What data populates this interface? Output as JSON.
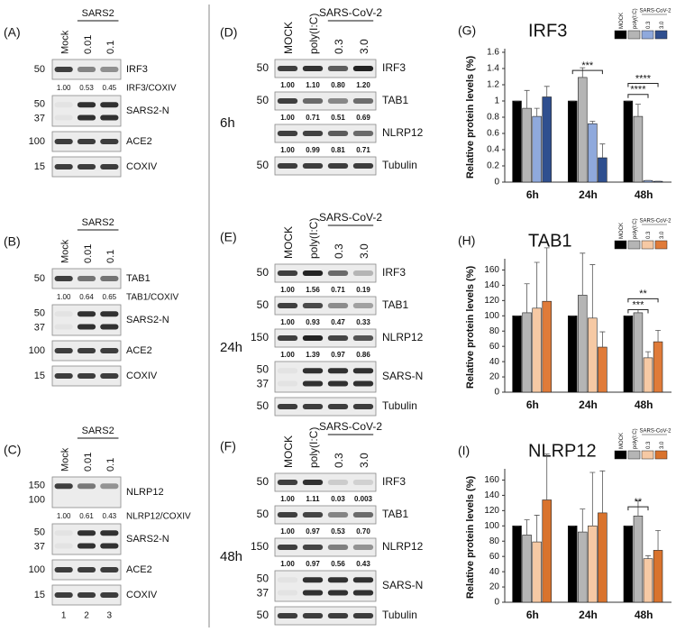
{
  "blots": [
    {
      "label": "(A)",
      "group": "SARS2",
      "lanes": [
        "Mock",
        "0.01",
        "0.1"
      ],
      "rows": [
        {
          "name": "IRF3",
          "markers": [
            "50"
          ],
          "quant": [
            "1.00",
            "0.53",
            "0.45"
          ],
          "quant_label": "IRF3/COXIV"
        },
        {
          "name": "SARS2-N",
          "markers": [
            "50",
            "37"
          ]
        },
        {
          "name": "ACE2",
          "markers": [
            "100"
          ]
        },
        {
          "name": "COXIV",
          "markers": [
            "15"
          ]
        }
      ]
    },
    {
      "label": "(B)",
      "group": "SARS2",
      "lanes": [
        "Mock",
        "0.01",
        "0.1"
      ],
      "rows": [
        {
          "name": "TAB1",
          "markers": [
            "50"
          ],
          "quant": [
            "1.00",
            "0.64",
            "0.65"
          ],
          "quant_label": "TAB1/COXIV"
        },
        {
          "name": "SARS2-N",
          "markers": [
            "50",
            "37"
          ]
        },
        {
          "name": "ACE2",
          "markers": [
            "100"
          ]
        },
        {
          "name": "COXIV",
          "markers": [
            "15"
          ]
        }
      ]
    },
    {
      "label": "(C)",
      "group": "SARS2",
      "lanes": [
        "Mock",
        "0.01",
        "0.1"
      ],
      "lane_numbers": [
        "1",
        "2",
        "3"
      ],
      "rows": [
        {
          "name": "NLRP12",
          "markers": [
            "150",
            "100"
          ],
          "quant": [
            "1.00",
            "0.61",
            "0.43"
          ],
          "quant_label": "NLRP12/COXIV"
        },
        {
          "name": "SARS2-N",
          "markers": [
            "50",
            "37"
          ]
        },
        {
          "name": "ACE2",
          "markers": [
            "100"
          ]
        },
        {
          "name": "COXIV",
          "markers": [
            "15"
          ]
        }
      ]
    },
    {
      "label": "(D)",
      "group": "SARS-CoV-2",
      "time": "6h",
      "lanes": [
        "MOCK",
        "poly(I:C)",
        "0.3",
        "3.0"
      ],
      "rows": [
        {
          "name": "IRF3",
          "markers": [
            "50"
          ],
          "quant": [
            "1.00",
            "1.10",
            "0.80",
            "1.20"
          ]
        },
        {
          "name": "TAB1",
          "markers": [
            "50"
          ],
          "quant": [
            "1.00",
            "0.71",
            "0.51",
            "0.69"
          ]
        },
        {
          "name": "NLRP12",
          "markers": [],
          "quant": [
            "1.00",
            "0.99",
            "0.81",
            "0.71"
          ]
        },
        {
          "name": "Tubulin",
          "markers": [
            "50"
          ]
        }
      ]
    },
    {
      "label": "(E)",
      "group": "SARS-CoV-2",
      "time": "24h",
      "lanes": [
        "MOCK",
        "poly(I:C)",
        "0.3",
        "3.0"
      ],
      "rows": [
        {
          "name": "IRF3",
          "markers": [
            "50"
          ],
          "quant": [
            "1.00",
            "1.56",
            "0.71",
            "0.19"
          ]
        },
        {
          "name": "TAB1",
          "markers": [
            "50"
          ],
          "quant": [
            "1.00",
            "0.93",
            "0.47",
            "0.33"
          ]
        },
        {
          "name": "NLRP12",
          "markers": [
            "150"
          ],
          "quant": [
            "1.00",
            "1.39",
            "0.97",
            "0.86"
          ]
        },
        {
          "name": "SARS-N",
          "markers": [
            "50",
            "37"
          ]
        },
        {
          "name": "Tubulin",
          "markers": [
            "50"
          ]
        }
      ]
    },
    {
      "label": "(F)",
      "group": "SARS-CoV-2",
      "time": "48h",
      "lanes": [
        "MOCK",
        "poly(I:C)",
        "0.3",
        "3.0"
      ],
      "rows": [
        {
          "name": "IRF3",
          "markers": [
            "50"
          ],
          "quant": [
            "1.00",
            "1.11",
            "0.03",
            "0.003"
          ]
        },
        {
          "name": "TAB1",
          "markers": [
            "50"
          ],
          "quant": [
            "1.00",
            "0.97",
            "0.53",
            "0.70"
          ]
        },
        {
          "name": "NLRP12",
          "markers": [
            "150"
          ],
          "quant": [
            "1.00",
            "0.97",
            "0.56",
            "0.43"
          ]
        },
        {
          "name": "SARS-N",
          "markers": [
            "50",
            "37"
          ]
        },
        {
          "name": "Tubulin",
          "markers": [
            "50"
          ]
        }
      ]
    }
  ],
  "chart_data": [
    {
      "type": "bar",
      "panel": "(G)",
      "title": "IRF3",
      "ylabel": "Relative protein levels (%)",
      "legend_group": "SARS-CoV-2",
      "categories": [
        "6h",
        "24h",
        "48h"
      ],
      "series": [
        {
          "name": "MOCK",
          "color": "#000000",
          "values": [
            1,
            1,
            1
          ],
          "errors": [
            0,
            0,
            0
          ]
        },
        {
          "name": "poly(I:C)",
          "color": "#b5b5b5",
          "values": [
            0.91,
            1.29,
            0.81
          ],
          "errors": [
            0.22,
            0.12,
            0.15
          ]
        },
        {
          "name": "0.3",
          "color": "#8fa9dc",
          "values": [
            0.81,
            0.72,
            0.02
          ],
          "errors": [
            0.1,
            0.03,
            0
          ]
        },
        {
          "name": "3.0",
          "color": "#2f4f8f",
          "values": [
            1.05,
            0.3,
            0.01
          ],
          "errors": [
            0.13,
            0.17,
            0
          ]
        }
      ],
      "annotations": [
        "***",
        "****",
        "****"
      ],
      "ylim": [
        0,
        1.6
      ],
      "yticks": [
        0,
        0.2,
        0.4,
        0.6,
        0.8,
        1,
        1.2,
        1.4,
        1.6
      ]
    },
    {
      "type": "bar",
      "panel": "(H)",
      "title": "TAB1",
      "ylabel": "Relative protein levels (%)",
      "legend_group": "SARS-CoV-2",
      "categories": [
        "6h",
        "24h",
        "48h"
      ],
      "series": [
        {
          "name": "MOCK",
          "color": "#000000",
          "values": [
            100,
            100,
            100
          ],
          "errors": [
            0,
            0,
            0
          ]
        },
        {
          "name": "poly(I:C)",
          "color": "#b5b5b5",
          "values": [
            104,
            127,
            104
          ],
          "errors": [
            38,
            55,
            4
          ]
        },
        {
          "name": "0.3",
          "color": "#f6c9a4",
          "values": [
            110,
            97,
            45
          ],
          "errors": [
            60,
            70,
            8
          ]
        },
        {
          "name": "3.0",
          "color": "#e07b39",
          "values": [
            119,
            59,
            66
          ],
          "errors": [
            70,
            20,
            15
          ]
        }
      ],
      "annotations": [
        "**",
        "***"
      ],
      "ylim": [
        0,
        170
      ],
      "yticks": [
        0,
        20,
        40,
        60,
        80,
        100,
        120,
        140,
        160
      ]
    },
    {
      "type": "bar",
      "panel": "(I)",
      "title": "NLRP12",
      "ylabel": "Relative protein levels (%)",
      "legend_group": "SARS-CoV-2",
      "categories": [
        "6h",
        "24h",
        "48h"
      ],
      "series": [
        {
          "name": "MOCK",
          "color": "#000000",
          "values": [
            100,
            100,
            100
          ],
          "errors": [
            0,
            0,
            0
          ]
        },
        {
          "name": "poly(I:C)",
          "color": "#b5b5b5",
          "values": [
            88,
            92,
            113
          ],
          "errors": [
            20,
            30,
            20
          ]
        },
        {
          "name": "0.3",
          "color": "#f6c9a4",
          "values": [
            79,
            100,
            57
          ],
          "errors": [
            35,
            70,
            4
          ]
        },
        {
          "name": "3.0",
          "color": "#d9732d",
          "values": [
            134,
            117,
            68
          ],
          "errors": [
            60,
            55,
            26
          ]
        }
      ],
      "annotations": [
        "**"
      ],
      "ylim": [
        0,
        170
      ],
      "yticks": [
        0,
        20,
        40,
        60,
        80,
        100,
        120,
        140,
        160
      ]
    }
  ]
}
